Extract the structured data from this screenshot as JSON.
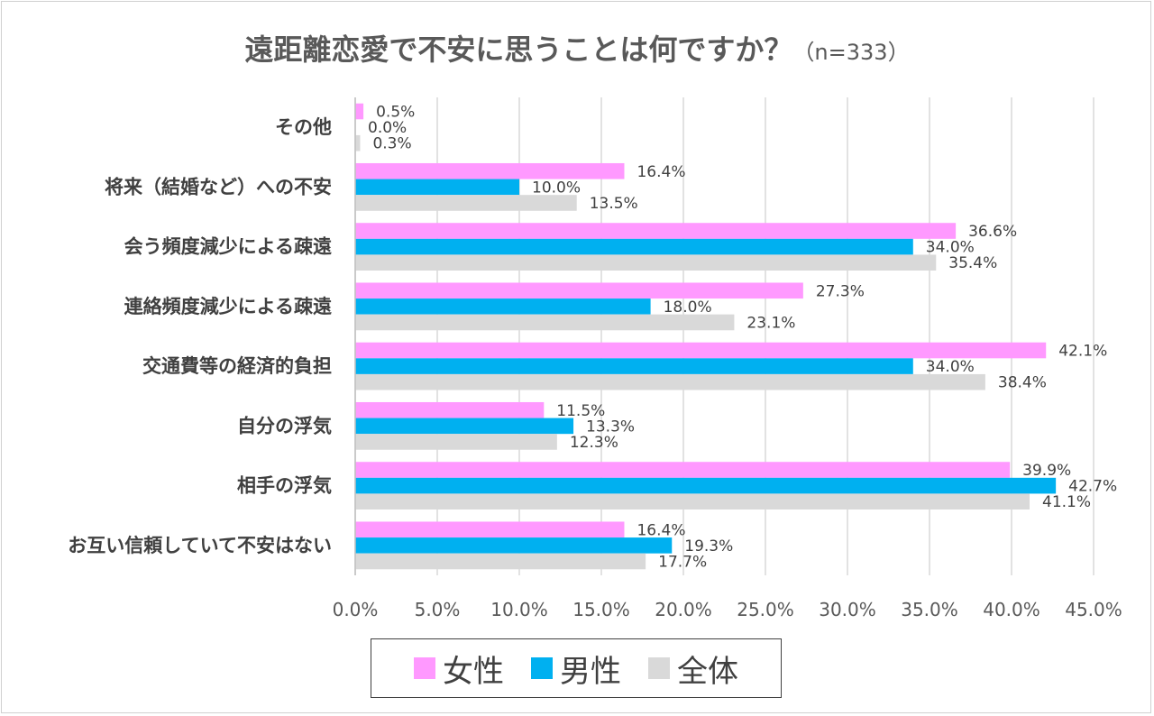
{
  "title": {
    "main": "遠距離恋愛で不安に思うことは何ですか？",
    "sub": "（n=333）"
  },
  "colors": {
    "female": "#ff99ff",
    "male": "#00b0f0",
    "overall": "#d9d9d9",
    "grid": "#d9d9d9"
  },
  "legend": [
    {
      "label": "女性",
      "color": "#ff99ff"
    },
    {
      "label": "男性",
      "color": "#00b0f0"
    },
    {
      "label": "全体",
      "color": "#d9d9d9"
    }
  ],
  "chart_data": {
    "type": "bar",
    "orientation": "horizontal",
    "title": "遠距離恋愛で不安に思うことは何ですか？（n=333）",
    "categories": [
      "その他",
      "将来（結婚など）への不安",
      "会う頻度減少による疎遠",
      "連絡頻度減少による疎遠",
      "交通費等の経済的負担",
      "自分の浮気",
      "相手の浮気",
      "お互い信頼していて不安はない"
    ],
    "series": [
      {
        "name": "女性",
        "values": [
          0.5,
          16.4,
          36.6,
          27.3,
          42.1,
          11.5,
          39.9,
          16.4
        ],
        "labels": [
          "0.5%",
          "16.4%",
          "36.6%",
          "27.3%",
          "42.1%",
          "11.5%",
          "39.9%",
          "16.4%"
        ]
      },
      {
        "name": "男性",
        "values": [
          0.0,
          10.0,
          34.0,
          18.0,
          34.0,
          13.3,
          42.7,
          19.3
        ],
        "labels": [
          "0.0%",
          "10.0%",
          "34.0%",
          "18.0%",
          "34.0%",
          "13.3%",
          "42.7%",
          "19.3%"
        ]
      },
      {
        "name": "全体",
        "values": [
          0.3,
          13.5,
          35.4,
          23.1,
          38.4,
          12.3,
          41.1,
          17.7
        ],
        "labels": [
          "0.3%",
          "13.5%",
          "35.4%",
          "23.1%",
          "38.4%",
          "12.3%",
          "41.1%",
          "17.7%"
        ]
      }
    ],
    "xlim": [
      0,
      45
    ],
    "xticks": [
      "0.0%",
      "5.0%",
      "10.0%",
      "15.0%",
      "20.0%",
      "25.0%",
      "30.0%",
      "35.0%",
      "40.0%",
      "45.0%"
    ],
    "grid": true,
    "legend_position": "bottom"
  }
}
